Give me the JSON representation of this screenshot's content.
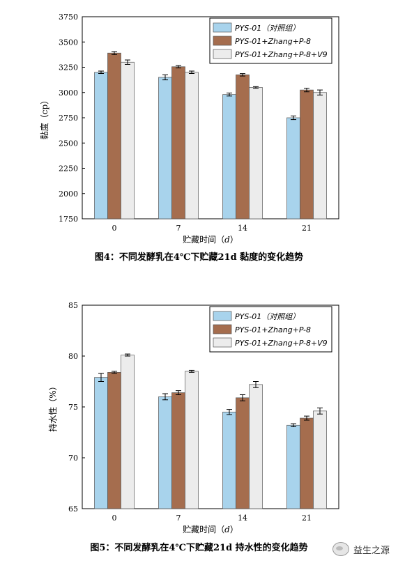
{
  "chart_data": [
    {
      "type": "bar",
      "categories": [
        "0",
        "7",
        "14",
        "21"
      ],
      "series": [
        {
          "name": "PYS-01（对照组）",
          "values": [
            3200,
            3150,
            2980,
            2750
          ],
          "errors": [
            12,
            25,
            15,
            18
          ],
          "color": "#a8d3ec"
        },
        {
          "name": "PYS-01+Zhang+P-8",
          "values": [
            3390,
            3255,
            3175,
            3025
          ],
          "errors": [
            15,
            12,
            12,
            18
          ],
          "color": "#a56d4e"
        },
        {
          "name": "PYS-01+Zhang+P-8+V9",
          "values": [
            3300,
            3200,
            3050,
            3000
          ],
          "errors": [
            22,
            12,
            8,
            25
          ],
          "color": "#ececec"
        }
      ],
      "yticks": [
        "1750",
        "2000",
        "2250",
        "2500",
        "2750",
        "3000",
        "3250",
        "3500",
        "3750"
      ],
      "ylim": [
        1750,
        3750
      ],
      "ylabel": "黏度（cp）",
      "xlabel_main": "贮藏时间（",
      "xlabel_unit": "d",
      "xlabel_close": "）",
      "legend": "top-right",
      "caption": "图4：不同发酵乳在4℃下贮藏21d 黏度的变化趋势"
    },
    {
      "type": "bar",
      "categories": [
        "0",
        "7",
        "14",
        "21"
      ],
      "series": [
        {
          "name": "PYS-01（对照组）",
          "values": [
            77.9,
            76.0,
            74.5,
            73.2
          ],
          "errors": [
            0.4,
            0.3,
            0.25,
            0.15
          ],
          "color": "#a8d3ec"
        },
        {
          "name": "PYS-01+Zhang+P-8",
          "values": [
            78.4,
            76.4,
            75.9,
            73.9
          ],
          "errors": [
            0.1,
            0.2,
            0.3,
            0.2
          ],
          "color": "#a56d4e"
        },
        {
          "name": "PYS-01+Zhang+P-8+V9",
          "values": [
            80.1,
            78.5,
            77.2,
            74.6
          ],
          "errors": [
            0.1,
            0.1,
            0.3,
            0.3
          ],
          "color": "#ececec"
        }
      ],
      "yticks": [
        "65",
        "70",
        "75",
        "80",
        "85"
      ],
      "ylim": [
        65,
        85
      ],
      "ylabel": "持水性（%）",
      "xlabel_main": "贮藏时间（",
      "xlabel_unit": "d",
      "xlabel_close": "）",
      "legend": "top-right",
      "caption": "图5：不同发酵乳在4℃下贮藏21d 持水性的变化趋势"
    }
  ],
  "watermark": {
    "text": "益生之源",
    "icon": "wechat-icon"
  }
}
